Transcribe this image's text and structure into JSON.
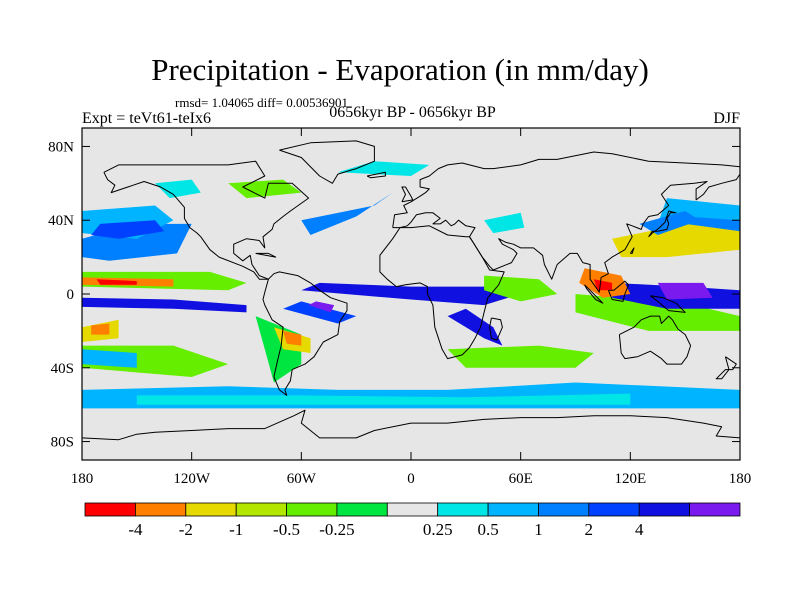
{
  "title": "Precipitation - Evaporation (in mm/day)",
  "stats": "rmsd= 1.04065 diff= 0.00536901",
  "experiment": "Expt = teVt61-teIx6",
  "period": "0656kyr BP - 0656kyr BP",
  "season": "DJF",
  "map": {
    "projection": "cylindrical-equidistant",
    "lon_range": [
      -180,
      180
    ],
    "lat_range": [
      -90,
      90
    ],
    "background_color": "#e6e6e6",
    "coastline_color": "#000000",
    "x_ticks": [
      {
        "lon": -180,
        "label": "180"
      },
      {
        "lon": -120,
        "label": "120W"
      },
      {
        "lon": -60,
        "label": "60W"
      },
      {
        "lon": 0,
        "label": "0"
      },
      {
        "lon": 60,
        "label": "60E"
      },
      {
        "lon": 120,
        "label": "120E"
      },
      {
        "lon": 180,
        "label": "180"
      }
    ],
    "y_ticks": [
      {
        "lat": 80,
        "label": "80N"
      },
      {
        "lat": 40,
        "label": "40N"
      },
      {
        "lat": 0,
        "label": "0"
      },
      {
        "lat": -40,
        "label": "40S"
      },
      {
        "lat": -80,
        "label": "80S"
      }
    ]
  },
  "colorbar": {
    "colors": [
      "#ff0000",
      "#ff7f00",
      "#e6d900",
      "#b3e600",
      "#66ee00",
      "#00e640",
      "#e6e6e6",
      "#00e6e6",
      "#00b4ff",
      "#0080ff",
      "#0040ff",
      "#1010e0",
      "#7a1aee"
    ],
    "labels": [
      "-4",
      "-2",
      "-1",
      "-0.5",
      "-0.25",
      "0.25",
      "0.5",
      "1",
      "2",
      "4"
    ]
  }
}
